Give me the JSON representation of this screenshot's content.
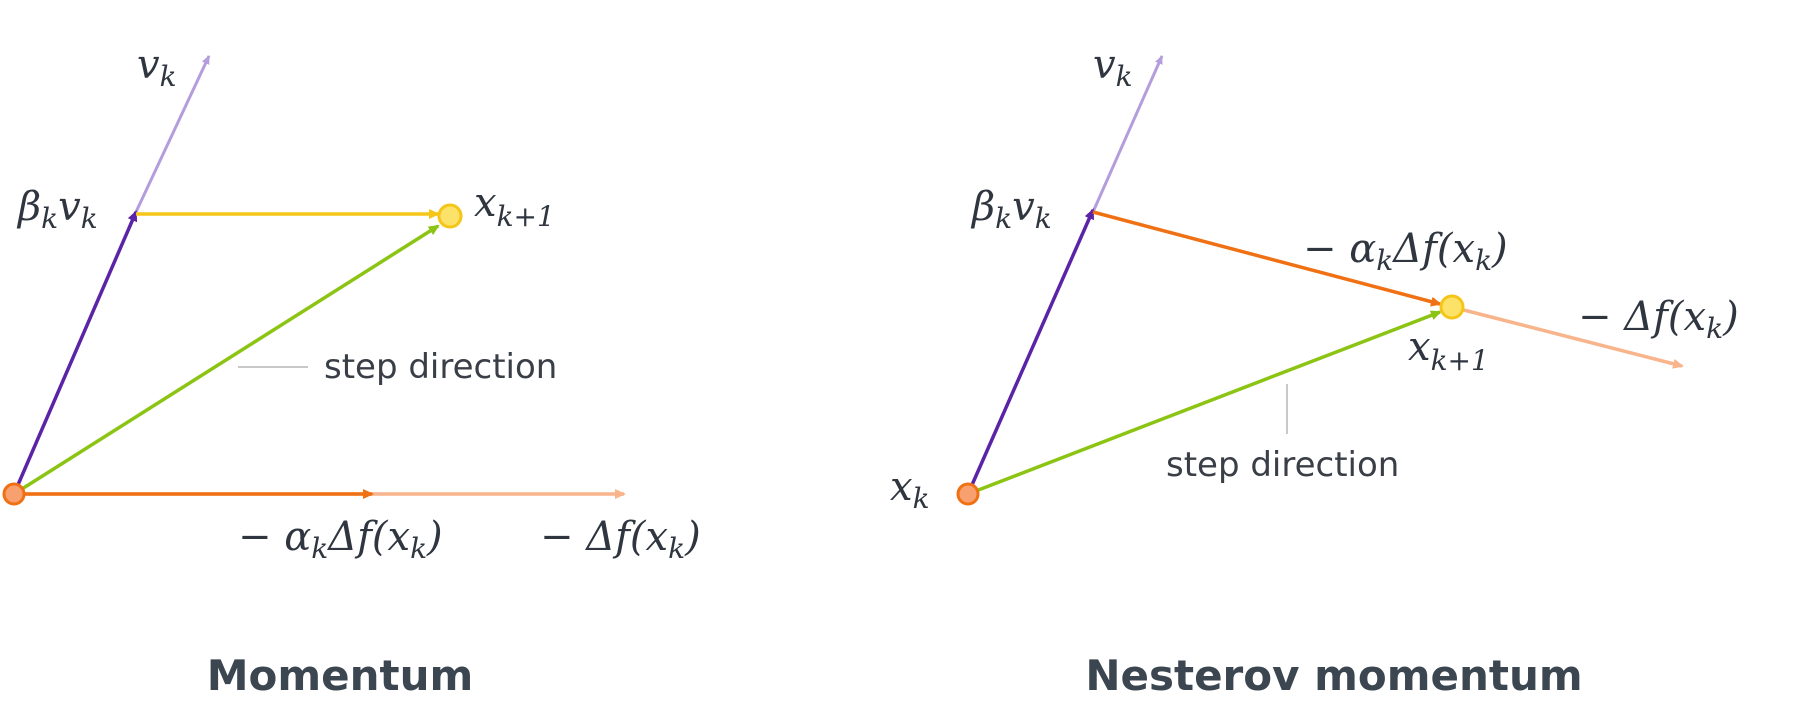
{
  "colors": {
    "velocity": "#b49ddc",
    "beta_velocity": "#5b24a6",
    "momentum_shift": "#f5c518",
    "step_direction": "#8cc414",
    "gradient_step": "#f07014",
    "full_gradient": "#f8b48a",
    "start_point_fill": "#f8a070",
    "start_point_stroke": "#f07014",
    "end_point_fill": "#fde26a",
    "end_point_stroke": "#f5c518",
    "leader_line": "#c8c8c8"
  },
  "panels": [
    {
      "title": "Momentum",
      "labels": {
        "v": "v",
        "v_sub": "k",
        "beta_v": "β",
        "beta_v_sub": "k",
        "beta_v_tail": "v",
        "beta_v_tail_sub": "k",
        "x_next": "x",
        "x_next_sub": "k+1",
        "neg_alpha_grad": "− α",
        "neg_alpha_grad_sub": "k",
        "neg_alpha_grad_tail": "Δf(x",
        "neg_alpha_grad_tail_sub": "k",
        "neg_alpha_grad_close": ")",
        "neg_grad": "− Δf(x",
        "neg_grad_sub": "k",
        "neg_grad_close": ")",
        "step_direction": "step direction"
      }
    },
    {
      "title": "Nesterov momentum",
      "labels": {
        "v": "v",
        "v_sub": "k",
        "beta_v": "β",
        "beta_v_sub": "k",
        "beta_v_tail": "v",
        "beta_v_tail_sub": "k",
        "x_start": "x",
        "x_start_sub": "k",
        "x_next": "x",
        "x_next_sub": "k+1",
        "neg_alpha_grad": "− α",
        "neg_alpha_grad_sub": "k",
        "neg_alpha_grad_tail": "Δf(x",
        "neg_alpha_grad_tail_sub": "k",
        "neg_alpha_grad_close": ")",
        "neg_grad": "− Δf(x",
        "neg_grad_sub": "k",
        "neg_grad_close": ")",
        "step_direction": "step direction"
      }
    }
  ]
}
